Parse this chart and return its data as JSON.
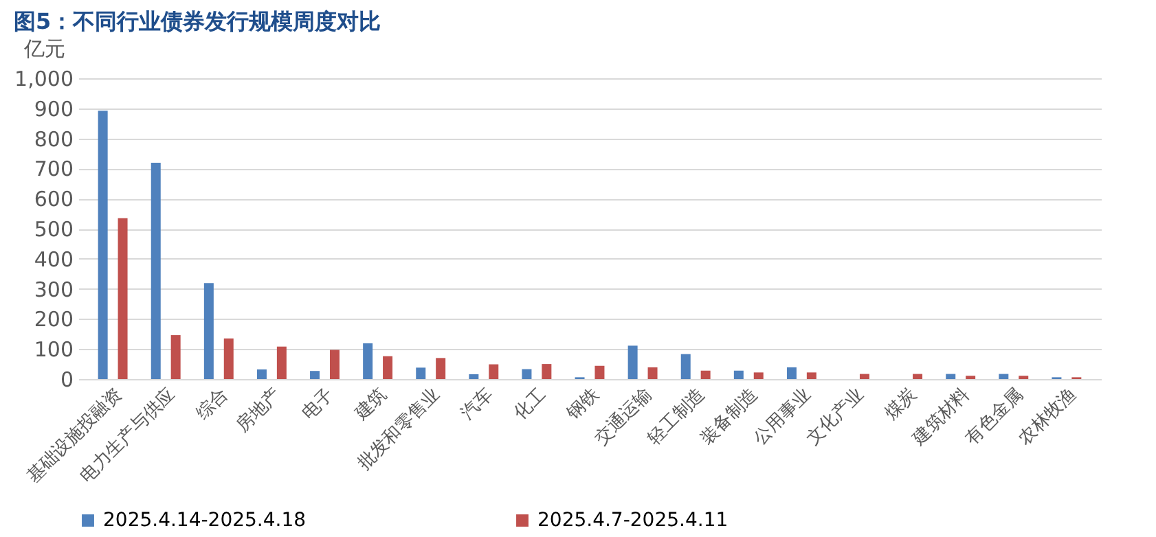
{
  "chart_data": {
    "type": "bar",
    "title": "图5：不同行业债券发行规模周度对比",
    "ylabel": "亿元",
    "categories": [
      "基础设施投融资",
      "电力生产与供应",
      "综合",
      "房地产",
      "电子",
      "建筑",
      "批发和零售业",
      "汽车",
      "化工",
      "钢铁",
      "交通运输",
      "轻工制造",
      "装备制造",
      "公用事业",
      "文化产业",
      "煤炭",
      "建筑材料",
      "有色金属",
      "农林牧渔"
    ],
    "series": [
      {
        "name": "2025.4.14-2025.4.18",
        "color": "#4f81bd",
        "values": [
          892,
          719,
          319,
          32,
          27,
          119,
          38,
          16,
          33,
          6,
          111,
          83,
          28,
          39,
          0,
          0,
          17,
          17,
          6
        ]
      },
      {
        "name": "2025.4.7-2025.4.11",
        "color": "#c0504d",
        "values": [
          535,
          146,
          135,
          108,
          97,
          76,
          70,
          49,
          50,
          44,
          39,
          28,
          22,
          22,
          17,
          17,
          11,
          11,
          6
        ]
      }
    ],
    "ylim": [
      0,
      1000
    ],
    "yticks": [
      0,
      100,
      200,
      300,
      400,
      500,
      600,
      700,
      800,
      900,
      {
        "value": 1000,
        "label": "1,000"
      }
    ],
    "grid": "y",
    "legend": "bottom"
  }
}
